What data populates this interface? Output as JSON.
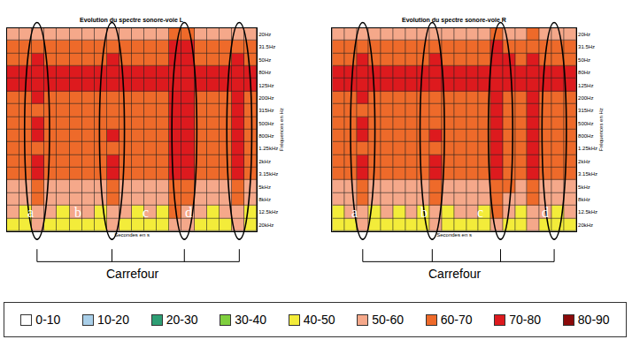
{
  "chart_data": [
    {
      "type": "heatmap",
      "title": "Evolution du spectre sonore-voie L",
      "x_label": "Secondes en s",
      "y_label": "Fréquences en Hz",
      "grid": true,
      "tick_labels": "y",
      "x": [
        0,
        5,
        10,
        15,
        20,
        25,
        30,
        35,
        40,
        45,
        50,
        55,
        60,
        65,
        70,
        75,
        80,
        85,
        90,
        95
      ],
      "xlim": [
        -2.5,
        97.5
      ],
      "y": [
        "20Hz",
        "31.5Hz",
        "50Hz",
        "80Hz",
        "125Hz",
        "200Hz",
        "315Hz",
        "500Hz",
        "800Hz",
        "1.25kHz",
        "2kHz",
        "3.15kHz",
        "5kHz",
        "8kHz",
        "12.5kHz",
        "20kHz"
      ],
      "cells": [
        [
          55,
          58,
          56,
          54,
          57,
          55,
          56,
          58,
          55,
          54,
          56,
          57,
          55,
          60,
          62,
          57,
          55,
          56,
          58,
          55
        ],
        [
          62,
          64,
          66,
          63,
          62,
          64,
          65,
          63,
          64,
          62,
          63,
          64,
          65,
          70,
          72,
          64,
          63,
          62,
          66,
          64
        ],
        [
          68,
          67,
          72,
          66,
          65,
          67,
          68,
          66,
          71,
          67,
          66,
          68,
          69,
          75,
          76,
          68,
          66,
          67,
          72,
          68
        ],
        [
          74,
          72,
          76,
          73,
          71,
          74,
          75,
          73,
          76,
          72,
          74,
          73,
          72,
          78,
          78,
          74,
          72,
          73,
          76,
          73
        ],
        [
          72,
          71,
          75,
          72,
          70,
          73,
          72,
          71,
          74,
          71,
          73,
          72,
          71,
          77,
          77,
          72,
          71,
          72,
          75,
          72
        ],
        [
          66,
          65,
          70,
          64,
          65,
          66,
          65,
          64,
          68,
          65,
          64,
          66,
          65,
          74,
          73,
          66,
          64,
          65,
          71,
          66
        ],
        [
          64,
          63,
          68,
          63,
          62,
          64,
          63,
          62,
          66,
          63,
          62,
          64,
          63,
          72,
          71,
          64,
          62,
          63,
          70,
          64
        ],
        [
          63,
          64,
          72,
          62,
          63,
          62,
          64,
          63,
          65,
          62,
          63,
          62,
          64,
          73,
          72,
          63,
          62,
          64,
          71,
          63
        ],
        [
          64,
          63,
          71,
          62,
          64,
          63,
          62,
          64,
          70,
          63,
          62,
          63,
          64,
          72,
          71,
          62,
          63,
          64,
          72,
          63
        ],
        [
          63,
          64,
          66,
          63,
          62,
          64,
          63,
          62,
          68,
          63,
          64,
          62,
          63,
          73,
          71,
          64,
          63,
          62,
          71,
          64
        ],
        [
          64,
          63,
          72,
          62,
          63,
          62,
          64,
          63,
          71,
          62,
          63,
          64,
          62,
          72,
          70,
          63,
          62,
          63,
          72,
          63
        ],
        [
          63,
          62,
          71,
          62,
          63,
          64,
          62,
          63,
          72,
          63,
          62,
          63,
          64,
          72,
          70,
          62,
          63,
          64,
          71,
          62
        ],
        [
          58,
          57,
          65,
          56,
          57,
          58,
          56,
          57,
          64,
          57,
          56,
          58,
          57,
          66,
          65,
          56,
          57,
          58,
          64,
          56
        ],
        [
          54,
          55,
          62,
          53,
          54,
          55,
          53,
          54,
          61,
          54,
          53,
          55,
          54,
          64,
          62,
          53,
          54,
          55,
          62,
          54
        ],
        [
          50,
          48,
          58,
          52,
          47,
          51,
          50,
          48,
          57,
          51,
          46,
          50,
          49,
          60,
          59,
          50,
          48,
          51,
          58,
          49
        ],
        [
          46,
          44,
          52,
          45,
          43,
          47,
          45,
          42,
          53,
          46,
          44,
          45,
          47,
          55,
          53,
          45,
          43,
          46,
          52,
          45
        ]
      ],
      "highlights": [
        9.5,
        39.5,
        68.5,
        90.5
      ],
      "annotations": [
        {
          "text": "a",
          "x": 7,
          "y": "12.5kHz"
        },
        {
          "text": "b",
          "x": 26,
          "y": "12.5kHz"
        },
        {
          "text": "c",
          "x": 53,
          "y": "12.5kHz"
        },
        {
          "text": "d",
          "x": 70,
          "y": "12.5kHz"
        }
      ],
      "bracket_label": "Carrefour"
    },
    {
      "type": "heatmap",
      "title": "Evolution du spectre sonore-voie R",
      "x_label": "Secondes en s",
      "y_label": "Fréquences en Hz",
      "grid": true,
      "tick_labels": "y",
      "x": [
        0,
        5,
        10,
        15,
        20,
        25,
        30,
        35,
        40,
        45,
        50,
        55,
        60,
        65,
        70,
        75,
        80,
        85,
        90,
        95
      ],
      "xlim": [
        -2.5,
        97.5
      ],
      "y": [
        "20Hz",
        "31.5Hz",
        "50Hz",
        "80Hz",
        "125Hz",
        "200Hz",
        "315Hz",
        "500Hz",
        "800Hz",
        "1.25kHz",
        "2kHz",
        "3.15kHz",
        "5kHz",
        "8kHz",
        "12.5kHz",
        "20kHz"
      ],
      "cells": [
        [
          56,
          57,
          58,
          55,
          56,
          54,
          57,
          56,
          58,
          55,
          56,
          55,
          57,
          61,
          58,
          56,
          60,
          57,
          55,
          56
        ],
        [
          63,
          64,
          67,
          62,
          63,
          64,
          63,
          65,
          66,
          63,
          62,
          64,
          65,
          71,
          66,
          64,
          69,
          65,
          63,
          64
        ],
        [
          67,
          68,
          72,
          66,
          67,
          66,
          68,
          67,
          71,
          66,
          67,
          68,
          67,
          76,
          70,
          67,
          73,
          68,
          66,
          67
        ],
        [
          73,
          74,
          76,
          72,
          73,
          72,
          74,
          73,
          75,
          72,
          73,
          74,
          73,
          78,
          75,
          73,
          77,
          74,
          72,
          73
        ],
        [
          72,
          73,
          75,
          71,
          72,
          71,
          73,
          72,
          74,
          71,
          72,
          73,
          72,
          77,
          74,
          72,
          76,
          73,
          71,
          72
        ],
        [
          65,
          66,
          70,
          64,
          65,
          64,
          66,
          65,
          69,
          64,
          65,
          66,
          65,
          75,
          68,
          65,
          72,
          66,
          64,
          65
        ],
        [
          63,
          64,
          69,
          62,
          63,
          62,
          64,
          63,
          67,
          62,
          63,
          64,
          63,
          73,
          66,
          63,
          71,
          64,
          62,
          63
        ],
        [
          64,
          63,
          71,
          63,
          62,
          63,
          64,
          62,
          66,
          63,
          64,
          63,
          62,
          72,
          65,
          62,
          72,
          63,
          64,
          63
        ],
        [
          63,
          64,
          72,
          62,
          64,
          63,
          62,
          64,
          71,
          62,
          63,
          64,
          63,
          73,
          66,
          63,
          71,
          62,
          63,
          64
        ],
        [
          64,
          63,
          67,
          63,
          62,
          64,
          63,
          62,
          69,
          63,
          62,
          63,
          64,
          72,
          65,
          64,
          70,
          63,
          62,
          63
        ],
        [
          63,
          64,
          73,
          62,
          63,
          62,
          64,
          63,
          72,
          62,
          64,
          63,
          62,
          73,
          66,
          63,
          71,
          64,
          63,
          62
        ],
        [
          62,
          63,
          72,
          63,
          62,
          63,
          62,
          64,
          71,
          63,
          62,
          64,
          63,
          72,
          65,
          62,
          72,
          63,
          62,
          63
        ],
        [
          57,
          58,
          66,
          56,
          57,
          56,
          58,
          57,
          65,
          56,
          57,
          58,
          57,
          67,
          60,
          57,
          66,
          57,
          56,
          58
        ],
        [
          55,
          54,
          63,
          53,
          54,
          55,
          54,
          53,
          62,
          54,
          55,
          54,
          53,
          65,
          58,
          54,
          63,
          55,
          54,
          53
        ],
        [
          49,
          51,
          59,
          47,
          50,
          48,
          52,
          49,
          58,
          46,
          50,
          51,
          48,
          61,
          53,
          49,
          59,
          50,
          47,
          51
        ],
        [
          45,
          46,
          53,
          43,
          45,
          44,
          46,
          42,
          54,
          44,
          45,
          46,
          44,
          56,
          49,
          45,
          54,
          46,
          43,
          45
        ]
      ],
      "highlights": [
        10,
        38.5,
        66.5,
        88.5
      ],
      "annotations": [
        {
          "text": "a",
          "x": 6.5,
          "y": "12.5kHz"
        },
        {
          "text": "b",
          "x": 35,
          "y": "12.5kHz"
        },
        {
          "text": "c",
          "x": 58,
          "y": "12.5kHz"
        },
        {
          "text": "d",
          "x": 85,
          "y": "12.5kHz"
        }
      ],
      "bracket_label": "Carrefour"
    }
  ],
  "color_legend": [
    {
      "label": "0-10",
      "range": [
        0,
        10
      ],
      "color": "#ffffff"
    },
    {
      "label": "10-20",
      "range": [
        10,
        20
      ],
      "color": "#a9cfe9"
    },
    {
      "label": "20-30",
      "range": [
        20,
        30
      ],
      "color": "#2e9e74"
    },
    {
      "label": "30-40",
      "range": [
        30,
        40
      ],
      "color": "#7fcf3e"
    },
    {
      "label": "40-50",
      "range": [
        40,
        50
      ],
      "color": "#f3ec3a"
    },
    {
      "label": "50-60",
      "range": [
        50,
        60
      ],
      "color": "#f5a88a"
    },
    {
      "label": "60-70",
      "range": [
        60,
        70
      ],
      "color": "#ee6a2a"
    },
    {
      "label": "70-80",
      "range": [
        70,
        80
      ],
      "color": "#dd1a1e"
    },
    {
      "label": "80-90",
      "range": [
        80,
        90
      ],
      "color": "#8b0a0a"
    }
  ]
}
